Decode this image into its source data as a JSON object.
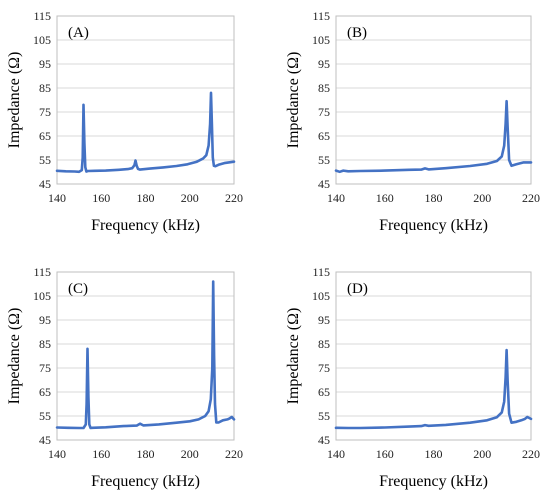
{
  "chart_data": [
    {
      "type": "line",
      "panel_label": "(A)",
      "xlabel": "Frequency (kHz)",
      "ylabel": "Impedance (Ω)",
      "xlim": [
        140,
        220
      ],
      "ylim": [
        45,
        115
      ],
      "xticks": [
        "140",
        "160",
        "180",
        "200",
        "220"
      ],
      "yticks": [
        "45",
        "55",
        "65",
        "75",
        "85",
        "95",
        "105",
        "115"
      ],
      "grid": true,
      "color": "#4472c4",
      "series": [
        {
          "x": [
            140,
            144,
            148,
            150,
            151.2,
            151.6,
            152,
            152.4,
            152.8,
            153.3,
            154,
            157,
            162,
            168,
            172,
            174,
            175,
            175.5,
            176,
            176.6,
            177.5,
            182,
            188,
            194,
            199,
            203,
            206,
            207.5,
            208.5,
            209.2,
            209.6,
            210,
            210.4,
            210.9,
            211.6,
            213,
            216,
            220
          ],
          "y": [
            50.5,
            50.3,
            50.2,
            50.1,
            50.8,
            56,
            78,
            62,
            52,
            50.2,
            50.4,
            50.5,
            50.6,
            50.9,
            51.2,
            51.6,
            52.8,
            54.8,
            52.6,
            51.3,
            51.0,
            51.4,
            51.9,
            52.5,
            53.2,
            54.2,
            55.6,
            57,
            61,
            70,
            83,
            70,
            56,
            52.6,
            52.4,
            53.0,
            53.8,
            54.3
          ]
        }
      ]
    },
    {
      "type": "line",
      "panel_label": "(B)",
      "xlabel": "Frequency (kHz)",
      "ylabel": "Impedance (Ω)",
      "xlim": [
        140,
        220
      ],
      "ylim": [
        45,
        115
      ],
      "xticks": [
        "140",
        "160",
        "180",
        "200",
        "220"
      ],
      "yticks": [
        "45",
        "55",
        "65",
        "75",
        "85",
        "95",
        "105",
        "115"
      ],
      "grid": true,
      "color": "#4472c4",
      "series": [
        {
          "x": [
            140,
            141.5,
            143,
            145,
            150,
            160,
            170,
            175,
            176.5,
            178,
            185,
            195,
            202,
            206,
            208,
            209,
            209.6,
            210,
            210.4,
            211,
            212,
            214,
            217,
            220
          ],
          "y": [
            50.6,
            50.1,
            50.6,
            50.3,
            50.4,
            50.6,
            50.9,
            51.0,
            51.5,
            51.1,
            51.6,
            52.5,
            53.4,
            54.6,
            56.5,
            61,
            70,
            79.5,
            69,
            55,
            52.6,
            53.2,
            54,
            54
          ]
        }
      ]
    },
    {
      "type": "line",
      "panel_label": "(C)",
      "xlabel": "Frequency (kHz)",
      "ylabel": "Impedance (Ω)",
      "xlim": [
        140,
        220
      ],
      "ylim": [
        45,
        115
      ],
      "xticks": [
        "140",
        "160",
        "180",
        "200",
        "220"
      ],
      "yticks": [
        "45",
        "55",
        "65",
        "75",
        "85",
        "95",
        "105",
        "115"
      ],
      "grid": true,
      "color": "#4472c4",
      "series": [
        {
          "x": [
            140,
            145,
            150,
            152,
            153,
            153.4,
            153.8,
            154.2,
            154.6,
            155.2,
            156,
            162,
            170,
            176,
            177.5,
            179,
            186,
            194,
            200,
            204,
            207,
            208.5,
            209.5,
            210.2,
            210.6,
            211,
            211.4,
            212,
            213,
            215,
            217,
            218,
            219,
            220
          ],
          "y": [
            50.2,
            50.1,
            50.0,
            50.0,
            51.5,
            60,
            83,
            63,
            51.5,
            50.0,
            50.1,
            50.3,
            50.8,
            51.0,
            51.8,
            51.1,
            51.5,
            52.2,
            52.8,
            53.6,
            55,
            57,
            62,
            75,
            111,
            80,
            60,
            52.3,
            52.3,
            53.2,
            53.6,
            54,
            54.6,
            53.6
          ]
        }
      ]
    },
    {
      "type": "line",
      "panel_label": "(D)",
      "xlabel": "Frequency (kHz)",
      "ylabel": "Impedance (Ω)",
      "xlim": [
        140,
        220
      ],
      "ylim": [
        45,
        115
      ],
      "xticks": [
        "140",
        "160",
        "180",
        "200",
        "220"
      ],
      "yticks": [
        "45",
        "55",
        "65",
        "75",
        "85",
        "95",
        "105",
        "115"
      ],
      "grid": true,
      "color": "#4472c4",
      "series": [
        {
          "x": [
            140,
            145,
            150,
            160,
            170,
            175,
            176.5,
            178,
            185,
            195,
            202,
            206,
            208,
            209,
            209.6,
            210,
            210.4,
            211,
            212,
            214,
            216,
            217.5,
            218.5,
            220
          ],
          "y": [
            50.1,
            50.0,
            50.0,
            50.2,
            50.6,
            50.8,
            51.2,
            50.9,
            51.3,
            52.2,
            53.2,
            54.5,
            56.5,
            61,
            71,
            82.5,
            70,
            56,
            52.2,
            52.6,
            53.2,
            53.8,
            54.6,
            53.8
          ]
        }
      ]
    }
  ]
}
